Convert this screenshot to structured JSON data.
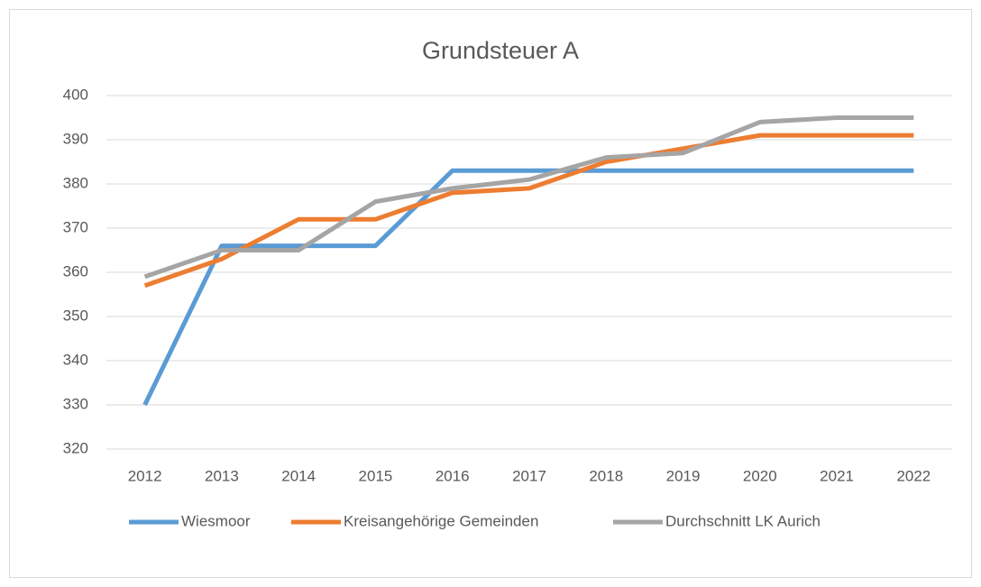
{
  "chart_data": {
    "type": "line",
    "title": "Grundsteuer A",
    "categories": [
      "2012",
      "2013",
      "2014",
      "2015",
      "2016",
      "2017",
      "2018",
      "2019",
      "2020",
      "2021",
      "2022"
    ],
    "series": [
      {
        "name": "Wiesmoor",
        "color": "#5b9bd5",
        "values": [
          330,
          366,
          366,
          366,
          383,
          383,
          383,
          383,
          383,
          383,
          383
        ]
      },
      {
        "name": "Kreisangehörige Gemeinden",
        "color": "#ed7d31",
        "values": [
          357,
          363,
          372,
          372,
          378,
          379,
          385,
          388,
          391,
          391,
          391
        ]
      },
      {
        "name": "Durchschnitt LK Aurich",
        "color": "#a5a5a5",
        "values": [
          359,
          365,
          365,
          376,
          379,
          381,
          386,
          387,
          394,
          395,
          395
        ]
      }
    ],
    "ylim": [
      320,
      400
    ],
    "yticks": [
      320,
      330,
      340,
      350,
      360,
      370,
      380,
      390,
      400
    ],
    "grid": true,
    "legend": "bottom"
  }
}
